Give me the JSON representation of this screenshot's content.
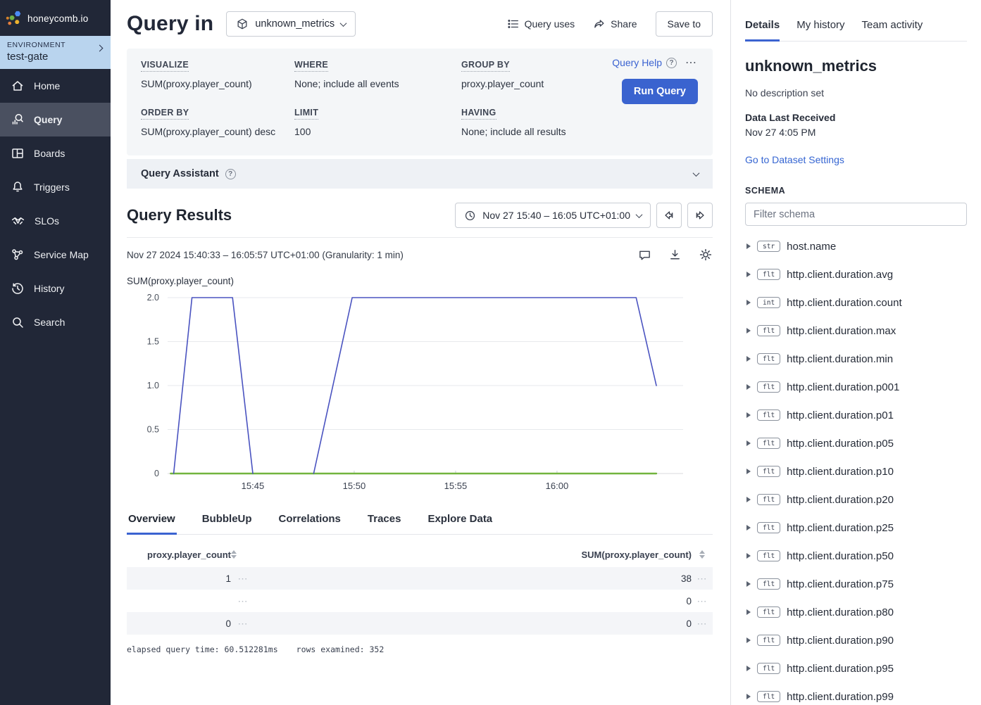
{
  "icons": {
    "row_menu": "⋯",
    "more": "⋯",
    "help": "?"
  },
  "sidebar": {
    "logo_text": "honeycomb.io",
    "environment_label": "ENVIRONMENT",
    "environment_name": "test-gate",
    "items": [
      {
        "id": "home",
        "label": "Home",
        "icon": "home-icon",
        "active": false
      },
      {
        "id": "query",
        "label": "Query",
        "icon": "query-icon",
        "active": true
      },
      {
        "id": "boards",
        "label": "Boards",
        "icon": "boards-icon",
        "active": false
      },
      {
        "id": "triggers",
        "label": "Triggers",
        "icon": "bell-icon",
        "active": false
      },
      {
        "id": "slos",
        "label": "SLOs",
        "icon": "handshake-icon",
        "active": false
      },
      {
        "id": "service-map",
        "label": "Service Map",
        "icon": "service-map-icon",
        "active": false
      },
      {
        "id": "history",
        "label": "History",
        "icon": "history-icon",
        "active": false
      },
      {
        "id": "search",
        "label": "Search",
        "icon": "search-icon",
        "active": false
      }
    ]
  },
  "header": {
    "title": "Query in",
    "dataset_name": "unknown_metrics",
    "query_uses_label": "Query uses",
    "share_label": "Share",
    "save_to_label": "Save to"
  },
  "builder": {
    "query_help_label": "Query Help",
    "run_query_label": "Run Query",
    "fields": [
      {
        "id": "visualize",
        "label": "VISUALIZE",
        "value": "SUM(proxy.player_count)"
      },
      {
        "id": "where",
        "label": "WHERE",
        "value": "None; include all events"
      },
      {
        "id": "group-by",
        "label": "GROUP BY",
        "value": "proxy.player_count"
      },
      {
        "id": "order-by",
        "label": "ORDER BY",
        "value": "SUM(proxy.player_count) desc"
      },
      {
        "id": "limit",
        "label": "LIMIT",
        "value": "100"
      },
      {
        "id": "having",
        "label": "HAVING",
        "value": "None; include all results"
      }
    ]
  },
  "assistant": {
    "label": "Query Assistant"
  },
  "results": {
    "title": "Query Results",
    "time_range": "Nov 27 15:40 – 16:05 UTC+01:00",
    "meta": "Nov 27 2024 15:40:33 – 16:05:57 UTC+01:00 (Granularity: 1 min)",
    "tabs": [
      {
        "label": "Overview",
        "active": true
      },
      {
        "label": "BubbleUp",
        "active": false
      },
      {
        "label": "Correlations",
        "active": false
      },
      {
        "label": "Traces",
        "active": false
      },
      {
        "label": "Explore Data",
        "active": false
      }
    ]
  },
  "chart_data": {
    "type": "line",
    "title": "SUM(proxy.player_count)",
    "xlabel": "",
    "ylabel": "SUM(proxy.player_count)",
    "x_description": "minutes after Nov 27 2024 15:40 UTC+01:00",
    "xlim": [
      0.8,
      25.94
    ],
    "ylim": [
      0,
      2
    ],
    "yticks": [
      0,
      0.5,
      1.0,
      1.5,
      2.0
    ],
    "ytick_labels": [
      "0",
      "0.5",
      "1.0",
      "1.5",
      "2.0"
    ],
    "xticks": [
      5,
      10,
      15,
      20
    ],
    "xtick_labels": [
      "15:45",
      "15:50",
      "15:55",
      "16:00"
    ],
    "grid": "horizontal",
    "legend": "none",
    "series": [
      {
        "name": "proxy.player_count = 1",
        "color": "#4a53c0",
        "width": 1.6,
        "segments": [
          [
            [
              1.1,
              0
            ],
            [
              2.0,
              2
            ],
            [
              4.0,
              2
            ],
            [
              5.0,
              0
            ]
          ],
          [
            [
              8.0,
              0
            ],
            [
              9.9,
              2
            ],
            [
              23.9,
              2
            ],
            [
              24.9,
              1.0
            ]
          ]
        ]
      },
      {
        "name": "proxy.player_count = (empty)",
        "color": "#72b43e",
        "width": 2.4,
        "segments": [
          [
            [
              0.95,
              0
            ],
            [
              24.9,
              0
            ]
          ]
        ]
      },
      {
        "name": "proxy.player_count = 0",
        "color": "#e9b01f",
        "width": 2.0,
        "segments": [
          [
            [
              0.95,
              0
            ],
            [
              24.9,
              0
            ]
          ]
        ]
      }
    ]
  },
  "table": {
    "columns": [
      "proxy.player_count",
      "SUM(proxy.player_count)"
    ],
    "rows": [
      {
        "color": "#3f4eb5",
        "value": "1",
        "sum": "38",
        "striped": true
      },
      {
        "color": "#52c41f",
        "value": "",
        "sum": "0",
        "striped": false
      },
      {
        "color": "#e9b01f",
        "value": "0",
        "sum": "0",
        "striped": true
      }
    ]
  },
  "footer": {
    "elapsed": "elapsed query time: 60.512281ms",
    "rows_examined": "rows examined: 352"
  },
  "details": {
    "tabs": [
      {
        "label": "Details",
        "active": true
      },
      {
        "label": "My history",
        "active": false
      },
      {
        "label": "Team activity",
        "active": false
      }
    ],
    "title": "unknown_metrics",
    "description": "No description set",
    "data_last_received_label": "Data Last Received",
    "data_last_received": "Nov 27 4:05 PM",
    "settings_link": "Go to Dataset Settings",
    "schema_label": "SCHEMA",
    "filter_placeholder": "Filter schema",
    "schema": [
      {
        "type": "str",
        "name": "host.name"
      },
      {
        "type": "flt",
        "name": "http.client.duration.avg"
      },
      {
        "type": "int",
        "name": "http.client.duration.count"
      },
      {
        "type": "flt",
        "name": "http.client.duration.max"
      },
      {
        "type": "flt",
        "name": "http.client.duration.min"
      },
      {
        "type": "flt",
        "name": "http.client.duration.p001"
      },
      {
        "type": "flt",
        "name": "http.client.duration.p01"
      },
      {
        "type": "flt",
        "name": "http.client.duration.p05"
      },
      {
        "type": "flt",
        "name": "http.client.duration.p10"
      },
      {
        "type": "flt",
        "name": "http.client.duration.p20"
      },
      {
        "type": "flt",
        "name": "http.client.duration.p25"
      },
      {
        "type": "flt",
        "name": "http.client.duration.p50"
      },
      {
        "type": "flt",
        "name": "http.client.duration.p75"
      },
      {
        "type": "flt",
        "name": "http.client.duration.p80"
      },
      {
        "type": "flt",
        "name": "http.client.duration.p90"
      },
      {
        "type": "flt",
        "name": "http.client.duration.p95"
      },
      {
        "type": "flt",
        "name": "http.client.duration.p99"
      }
    ]
  }
}
